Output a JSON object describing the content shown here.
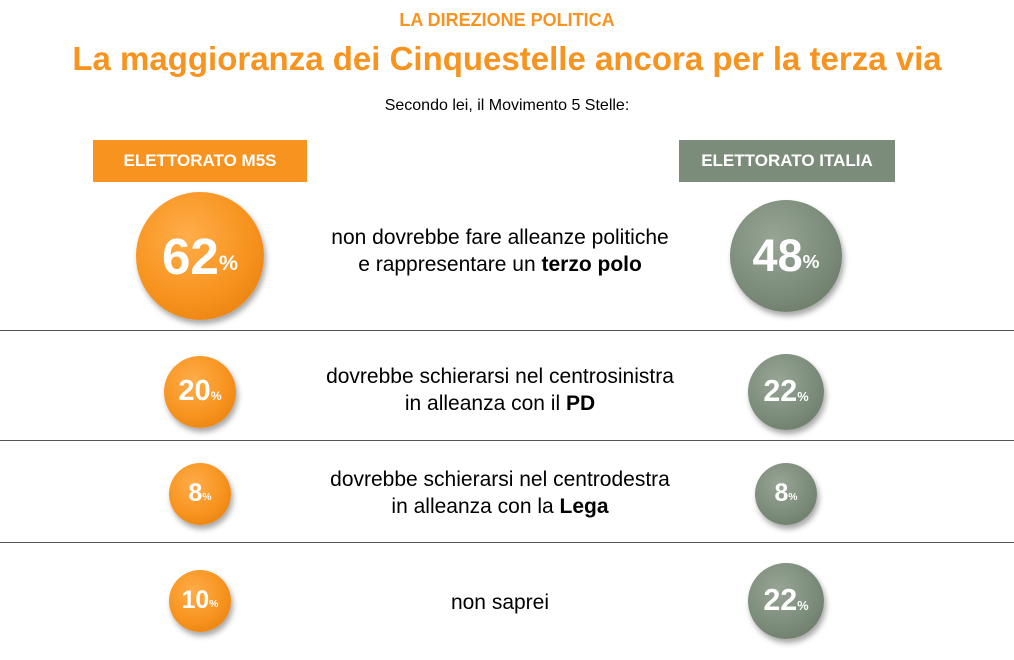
{
  "header": {
    "kicker": "LA DIREZIONE POLITICA",
    "title": "La maggioranza dei Cinquestelle ancora per la terza via",
    "subtitle": "Secondo lei, il Movimento 5 Stelle:"
  },
  "colors": {
    "accent_orange": "#f7931e",
    "accent_gray": "#7c8c7b"
  },
  "chart_data": {
    "type": "table",
    "unit": "%",
    "columns": [
      {
        "name": "ELETTORATO M5S",
        "color": "#f7931e"
      },
      {
        "name": "ELETTORATO ITALIA",
        "color": "#7c8c7b"
      }
    ],
    "rows": [
      {
        "line1": "non dovrebbe fare alleanze politiche",
        "line2_prefix": "e rappresentare un ",
        "line2_bold": "terzo polo",
        "m5s": 62,
        "italia": 48
      },
      {
        "line1": "dovrebbe schierarsi nel centrosinistra",
        "line2_prefix": "in alleanza con il ",
        "line2_bold": "PD",
        "m5s": 20,
        "italia": 22
      },
      {
        "line1": "dovrebbe schierarsi nel centrodestra",
        "line2_prefix": "in alleanza con la ",
        "line2_bold": "Lega",
        "m5s": 8,
        "italia": 8
      },
      {
        "line1": "non saprei",
        "line2_prefix": "",
        "line2_bold": "",
        "m5s": 10,
        "italia": 22
      }
    ]
  }
}
